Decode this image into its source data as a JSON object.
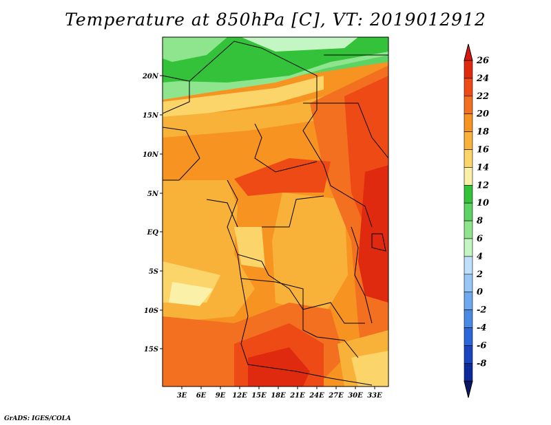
{
  "title": "Temperature at 850hPa [C], VT: 2019012912",
  "credit": "GrADS: IGES/COLA",
  "map": {
    "lat_labels": [
      "20N",
      "15N",
      "10N",
      "5N",
      "EQ",
      "5S",
      "10S",
      "15S"
    ],
    "lon_labels": [
      "3E",
      "6E",
      "9E",
      "12E",
      "15E",
      "18E",
      "21E",
      "24E",
      "27E",
      "30E",
      "33E"
    ]
  },
  "colorbar": {
    "labels": [
      "26",
      "24",
      "22",
      "20",
      "18",
      "16",
      "14",
      "12",
      "10",
      "8",
      "6",
      "4",
      "2",
      "0",
      "-2",
      "-4",
      "-6",
      "-8"
    ],
    "colors": [
      "#e02a10",
      "#ee4a16",
      "#f2701f",
      "#f69321",
      "#f8b23a",
      "#fbd46a",
      "#fbf0a8",
      "#33c23a",
      "#5cd364",
      "#8fe58e",
      "#c4f6c3",
      "#bfdffb",
      "#98c7f6",
      "#6ea9ef",
      "#4a8ae5",
      "#2b67d8",
      "#1a45bf",
      "#0d2a9a"
    ],
    "top_color": "#d8180e",
    "bottom_color": "#0a1666"
  }
}
